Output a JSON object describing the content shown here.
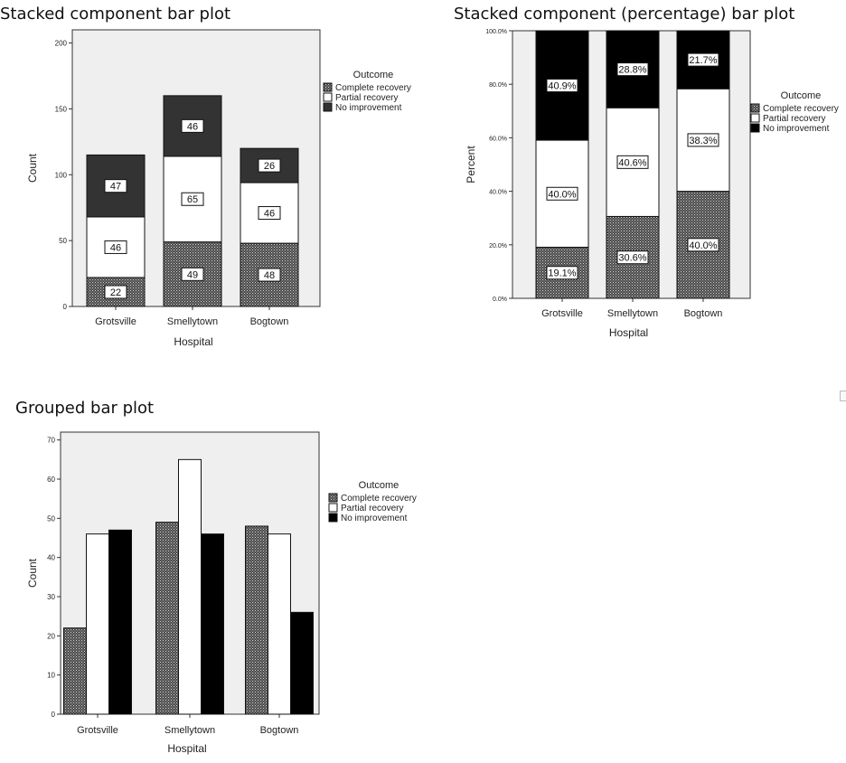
{
  "headings": [
    "Stacked component bar plot",
    "Stacked component (percentage) bar plot",
    "Grouped bar plot"
  ],
  "colors": {
    "complete": "url(#dots)",
    "partial": "#ffffff",
    "none_stacked": "#333333",
    "none_pct": "#000000",
    "plot_bg": "#efefef"
  },
  "chart_data": [
    {
      "type": "bar",
      "stacked": true,
      "categories": [
        "Grotsville",
        "Smellytown",
        "Bogtown"
      ],
      "series": [
        {
          "name": "Complete recovery",
          "values": [
            22,
            49,
            48
          ]
        },
        {
          "name": "Partial recovery",
          "values": [
            46,
            65,
            46
          ]
        },
        {
          "name": "No improvement",
          "values": [
            47,
            46,
            26
          ]
        }
      ],
      "labels": [
        [
          "22",
          "49",
          "48"
        ],
        [
          "46",
          "65",
          "46"
        ],
        [
          "47",
          "46",
          "26"
        ]
      ],
      "xlabel": "Hospital",
      "ylabel": "Count",
      "ylim": [
        0,
        210
      ],
      "yticks": [
        0,
        50,
        100,
        150,
        200
      ],
      "yticklabels": [
        "0",
        "50",
        "100",
        "150",
        "200"
      ],
      "legend_title": "Outcome",
      "legend_position": "right"
    },
    {
      "type": "bar",
      "stacked": true,
      "percent": true,
      "categories": [
        "Grotsville",
        "Smellytown",
        "Bogtown"
      ],
      "series": [
        {
          "name": "Complete recovery",
          "values": [
            19.1,
            30.6,
            40.0
          ]
        },
        {
          "name": "Partial recovery",
          "values": [
            40.0,
            40.6,
            38.3
          ]
        },
        {
          "name": "No improvement",
          "values": [
            40.9,
            28.8,
            21.7
          ]
        }
      ],
      "labels": [
        [
          "19.1%",
          "30.6%",
          "40.0%"
        ],
        [
          "40.0%",
          "40.6%",
          "38.3%"
        ],
        [
          "40.9%",
          "28.8%",
          "21.7%"
        ]
      ],
      "xlabel": "Hospital",
      "ylabel": "Percent",
      "ylim": [
        0,
        100
      ],
      "yticks": [
        0,
        20,
        40,
        60,
        80,
        100
      ],
      "yticklabels": [
        "0.0%",
        "20.0%",
        "40.0%",
        "60.0%",
        "80.0%",
        "100.0%"
      ],
      "legend_title": "Outcome",
      "legend_position": "right"
    },
    {
      "type": "bar",
      "stacked": false,
      "categories": [
        "Grotsville",
        "Smellytown",
        "Bogtown"
      ],
      "series": [
        {
          "name": "Complete recovery",
          "values": [
            22,
            49,
            48
          ]
        },
        {
          "name": "Partial recovery",
          "values": [
            46,
            65,
            46
          ]
        },
        {
          "name": "No improvement",
          "values": [
            47,
            46,
            26
          ]
        }
      ],
      "xlabel": "Hospital",
      "ylabel": "Count",
      "ylim": [
        0,
        72
      ],
      "yticks": [
        0,
        10,
        20,
        30,
        40,
        50,
        60,
        70
      ],
      "yticklabels": [
        "0",
        "10",
        "20",
        "30",
        "40",
        "50",
        "60",
        "70"
      ],
      "legend_title": "Outcome",
      "legend_position": "right"
    }
  ]
}
